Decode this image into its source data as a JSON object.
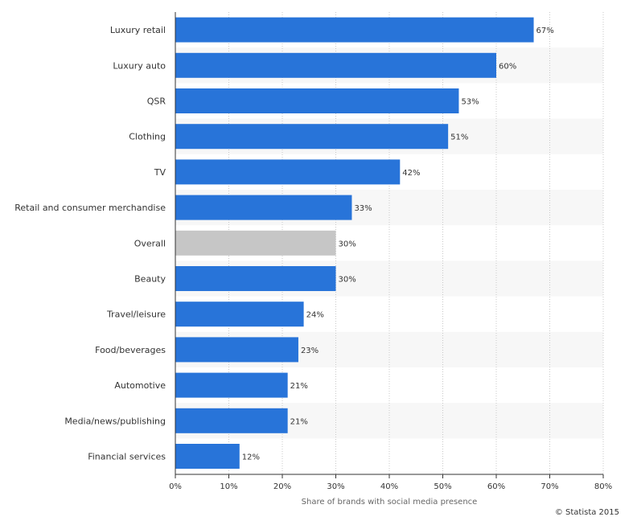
{
  "chart_data": {
    "type": "bar",
    "orientation": "horizontal",
    "categories": [
      "Luxury retail",
      "Luxury auto",
      "QSR",
      "Clothing",
      "TV",
      "Retail and consumer merchandise",
      "Overall",
      "Beauty",
      "Travel/leisure",
      "Food/beverages",
      "Automotive",
      "Media/news/publishing",
      "Financial services"
    ],
    "values": [
      67,
      60,
      53,
      51,
      42,
      33,
      30,
      30,
      24,
      23,
      21,
      21,
      12
    ],
    "value_labels": [
      "67%",
      "60%",
      "53%",
      "51%",
      "42%",
      "33%",
      "30%",
      "30%",
      "24%",
      "23%",
      "21%",
      "21%",
      "12%"
    ],
    "highlight_category": "Overall",
    "colors": {
      "bar": "#2874d9",
      "highlight_bar": "#c6c6c6",
      "band": "#f7f7f7",
      "grid": "#c8c8c8",
      "axis": "#333333"
    },
    "xlabel": "Share of brands with social media presence",
    "ylabel": "",
    "xlim": [
      0,
      80
    ],
    "xticks": [
      0,
      10,
      20,
      30,
      40,
      50,
      60,
      70,
      80
    ],
    "xtick_labels": [
      "0%",
      "10%",
      "20%",
      "30%",
      "40%",
      "50%",
      "60%",
      "70%",
      "80%"
    ],
    "grid": true
  },
  "credit": "© Statista 2015"
}
